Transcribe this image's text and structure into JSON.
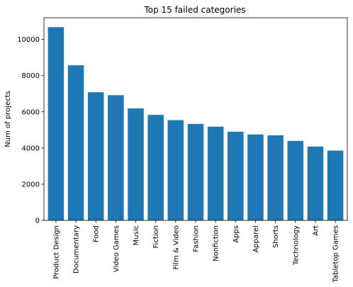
{
  "chart_data": {
    "type": "bar",
    "title": "Top 15 failed categories",
    "xlabel": "",
    "ylabel": "Num of projects",
    "categories": [
      "Product Design",
      "Documentary",
      "Food",
      "Video Games",
      "Music",
      "Fiction",
      "Film & Video",
      "Fashion",
      "Nonfiction",
      "Apps",
      "Apparel",
      "Shorts",
      "Technology",
      "Art",
      "Tabletop Games"
    ],
    "values": [
      10680,
      8570,
      7080,
      6920,
      6190,
      5830,
      5540,
      5330,
      5180,
      4900,
      4750,
      4700,
      4390,
      4080,
      3860
    ],
    "ylim": [
      0,
      11200
    ],
    "yticks": [
      0,
      2000,
      4000,
      6000,
      8000,
      10000
    ],
    "ytick_labels": [
      "0",
      "2000",
      "4000",
      "6000",
      "8000",
      "10000"
    ],
    "bar_color": "#1f77b4",
    "grid": false,
    "legend": "none"
  }
}
